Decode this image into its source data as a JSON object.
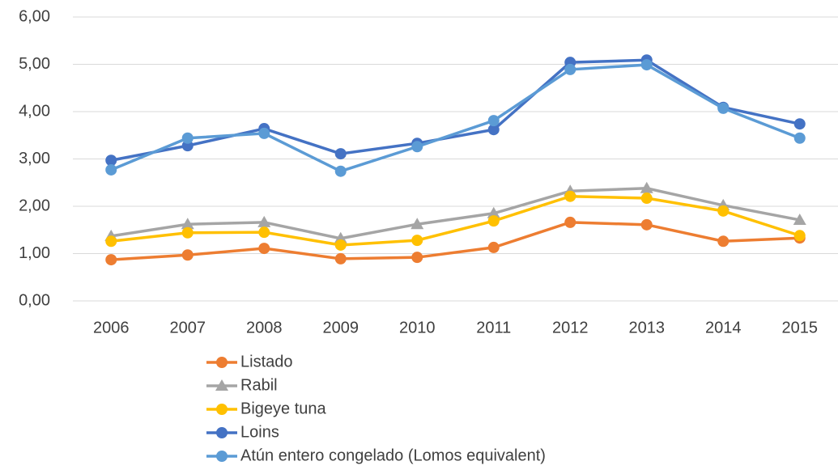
{
  "chart_data": {
    "type": "line",
    "categories": [
      "2006",
      "2007",
      "2008",
      "2009",
      "2010",
      "2011",
      "2012",
      "2013",
      "2014",
      "2015"
    ],
    "series": [
      {
        "name": "Listado",
        "color": "#ed7d31",
        "marker": "circle",
        "values": [
          0.87,
          0.97,
          1.11,
          0.89,
          0.92,
          1.13,
          1.66,
          1.61,
          1.26,
          1.33
        ]
      },
      {
        "name": "Rabil",
        "color": "#a5a5a5",
        "marker": "triangle",
        "values": [
          1.37,
          1.62,
          1.66,
          1.32,
          1.62,
          1.85,
          2.32,
          2.38,
          2.02,
          1.71
        ]
      },
      {
        "name": "Bigeye tuna",
        "color": "#ffc000",
        "marker": "circle",
        "values": [
          1.26,
          1.44,
          1.45,
          1.18,
          1.28,
          1.69,
          2.21,
          2.17,
          1.9,
          1.38
        ]
      },
      {
        "name": "Loins",
        "color": "#4472c4",
        "marker": "circle",
        "values": [
          2.97,
          3.28,
          3.64,
          3.11,
          3.33,
          3.62,
          5.04,
          5.09,
          4.09,
          3.74
        ]
      },
      {
        "name": "Atún entero congelado (Lomos equivalent)",
        "color": "#5b9bd5",
        "marker": "circle",
        "values": [
          2.77,
          3.44,
          3.54,
          2.74,
          3.26,
          3.81,
          4.89,
          4.99,
          4.07,
          3.44
        ]
      }
    ],
    "ylim": [
      0,
      6
    ],
    "yticks": [
      {
        "value": 0,
        "label": "0,00"
      },
      {
        "value": 1,
        "label": "1,00"
      },
      {
        "value": 2,
        "label": "2,00"
      },
      {
        "value": 3,
        "label": "3,00"
      },
      {
        "value": 4,
        "label": "4,00"
      },
      {
        "value": 5,
        "label": "5,00"
      },
      {
        "value": 6,
        "label": "6,00"
      }
    ],
    "grid": true,
    "legend": "bottom"
  }
}
